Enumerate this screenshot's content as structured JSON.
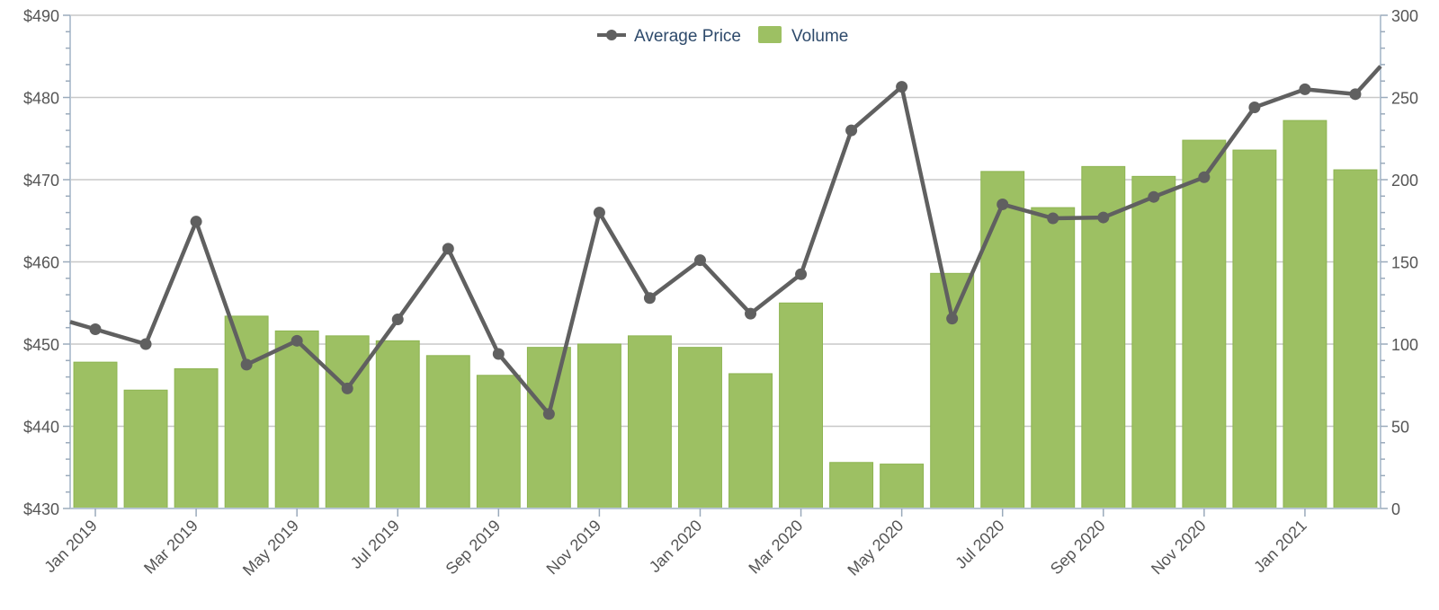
{
  "chart_data": {
    "type": "bar",
    "categories": [
      "Jan 2019",
      "Feb 2019",
      "Mar 2019",
      "Apr 2019",
      "May 2019",
      "Jun 2019",
      "Jul 2019",
      "Aug 2019",
      "Sep 2019",
      "Oct 2019",
      "Nov 2019",
      "Dec 2019",
      "Jan 2020",
      "Feb 2020",
      "Mar 2020",
      "Apr 2020",
      "May 2020",
      "Jun 2020",
      "Jul 2020",
      "Aug 2020",
      "Sep 2020",
      "Oct 2020",
      "Nov 2020",
      "Dec 2020",
      "Jan 2021",
      "Feb 2021"
    ],
    "x_tick_labels": [
      "Jan 2019",
      "Mar 2019",
      "May 2019",
      "Jul 2019",
      "Sep 2019",
      "Nov 2019",
      "Jan 2020",
      "Mar 2020",
      "May 2020",
      "Jul 2020",
      "Sep 2020",
      "Nov 2020",
      "Jan 2021"
    ],
    "series": [
      {
        "name": "Volume",
        "type": "bar",
        "axis": "right",
        "color": "#9dc063",
        "values": [
          89,
          72,
          85,
          117,
          108,
          105,
          102,
          93,
          81,
          98,
          100,
          105,
          98,
          82,
          125,
          28,
          27,
          143,
          205,
          183,
          208,
          202,
          224,
          218,
          236,
          206
        ]
      },
      {
        "name": "Average Price",
        "type": "line",
        "axis": "left",
        "color": "#606060",
        "values": [
          451.8,
          450.0,
          464.9,
          447.5,
          450.4,
          444.6,
          453.0,
          461.6,
          448.8,
          441.5,
          466.0,
          455.6,
          460.2,
          453.7,
          458.5,
          476.0,
          481.3,
          453.1,
          467.0,
          465.3,
          465.4,
          467.9,
          470.3,
          478.8,
          481.0,
          480.4
        ]
      }
    ],
    "y_left": {
      "label": "",
      "ylim": [
        430,
        490
      ],
      "ticks": [
        "$430",
        "$440",
        "$450",
        "$460",
        "$470",
        "$480",
        "$490"
      ]
    },
    "y_right": {
      "label": "",
      "ylim": [
        0,
        300
      ],
      "ticks": [
        "0",
        "50",
        "100",
        "150",
        "200",
        "250",
        "300"
      ]
    },
    "legend": {
      "placement": "top-center",
      "items": [
        "Average Price",
        "Volume"
      ]
    },
    "grid": true,
    "title": ""
  }
}
